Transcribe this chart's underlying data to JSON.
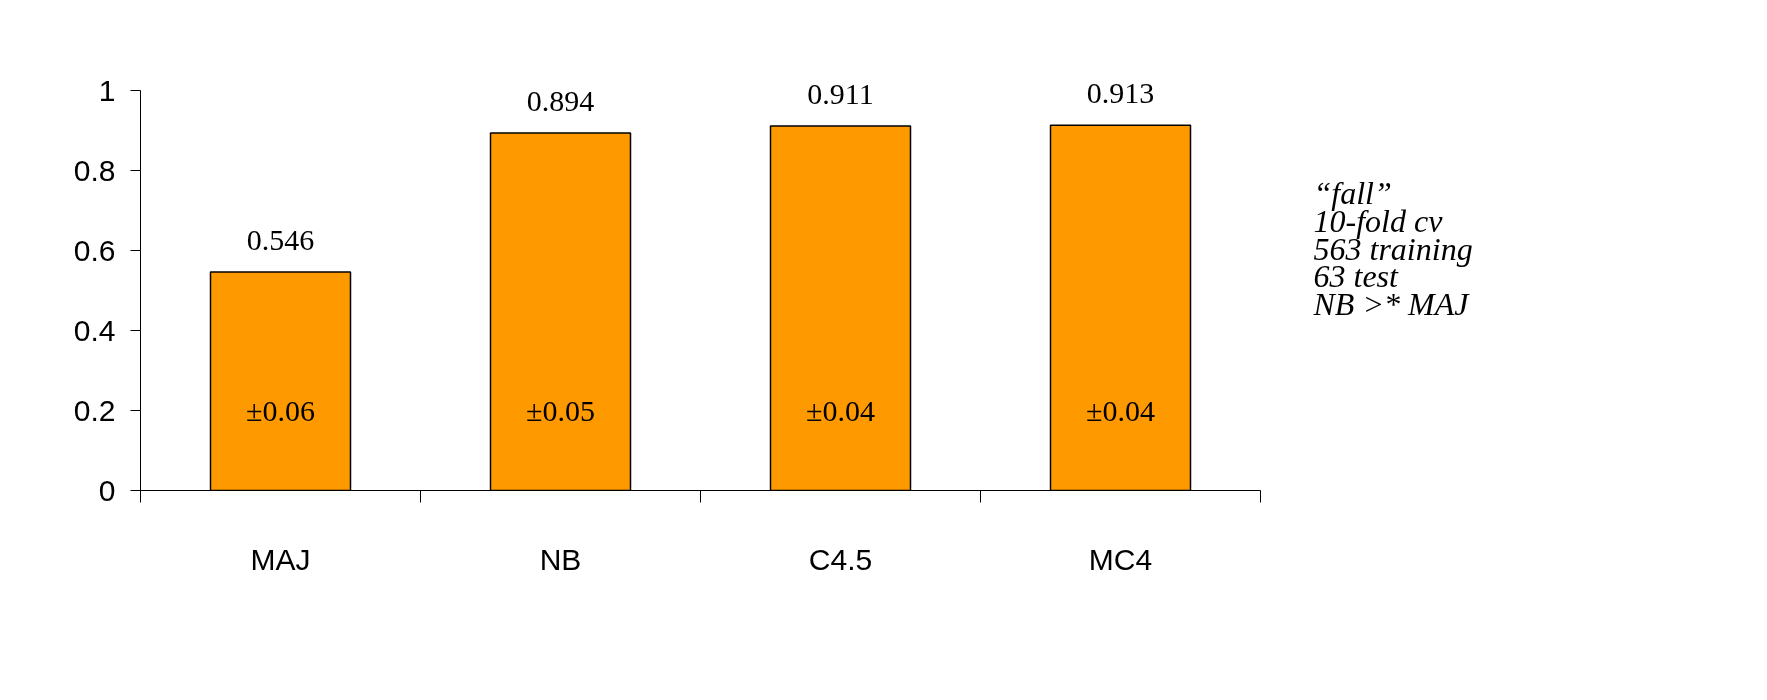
{
  "chart_data": {
    "type": "bar",
    "categories": [
      "MAJ",
      "NB",
      "C4.5",
      "MC4"
    ],
    "values": [
      0.546,
      0.894,
      0.911,
      0.913
    ],
    "color": "#ff9900",
    "data_labels": true,
    "ylim": [
      0,
      1
    ],
    "yticks": [
      0,
      0.2,
      0.4,
      0.6,
      0.8,
      1
    ],
    "grid": false,
    "annotations": [
      "±0.06",
      "±0.05",
      "±0.04",
      "±0.04",
      "“fall”",
      "10-fold cv",
      "563 training",
      "63 test",
      "NB >* MAJ"
    ]
  }
}
